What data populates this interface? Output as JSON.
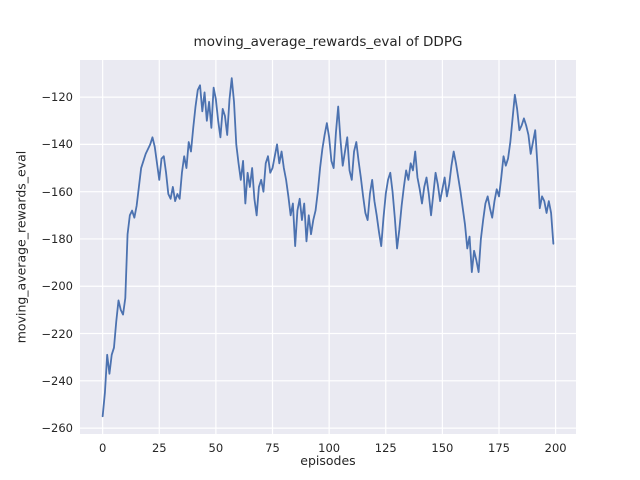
{
  "chart_data": {
    "type": "line",
    "title": "moving_average_rewards_eval of DDPG",
    "xlabel": "episodes",
    "ylabel": "moving_average_rewards_eval",
    "grid": true,
    "legend": false,
    "line_color": "#4c72b0",
    "plot_background": "#eaeaf2",
    "grid_color": "#ffffff",
    "text_color": "#262626",
    "xlim": [
      -10,
      209
    ],
    "ylim": [
      -262.5,
      -104.3
    ],
    "xticks": [
      0,
      25,
      50,
      75,
      100,
      125,
      150,
      175,
      200
    ],
    "yticks": [
      -260,
      -240,
      -220,
      -200,
      -180,
      -160,
      -140,
      -120
    ],
    "x": [
      0,
      1,
      2,
      3,
      4,
      5,
      6,
      7,
      8,
      9,
      10,
      11,
      12,
      13,
      14,
      15,
      16,
      17,
      18,
      19,
      20,
      21,
      22,
      23,
      24,
      25,
      26,
      27,
      28,
      29,
      30,
      31,
      32,
      33,
      34,
      35,
      36,
      37,
      38,
      39,
      40,
      41,
      42,
      43,
      44,
      45,
      46,
      47,
      48,
      49,
      50,
      51,
      52,
      53,
      54,
      55,
      56,
      57,
      58,
      59,
      60,
      61,
      62,
      63,
      64,
      65,
      66,
      67,
      68,
      69,
      70,
      71,
      72,
      73,
      74,
      75,
      76,
      77,
      78,
      79,
      80,
      81,
      82,
      83,
      84,
      85,
      86,
      87,
      88,
      89,
      90,
      91,
      92,
      93,
      94,
      95,
      96,
      97,
      98,
      99,
      100,
      101,
      102,
      103,
      104,
      105,
      106,
      107,
      108,
      109,
      110,
      111,
      112,
      113,
      114,
      115,
      116,
      117,
      118,
      119,
      120,
      121,
      122,
      123,
      124,
      125,
      126,
      127,
      128,
      129,
      130,
      131,
      132,
      133,
      134,
      135,
      136,
      137,
      138,
      139,
      140,
      141,
      142,
      143,
      144,
      145,
      146,
      147,
      148,
      149,
      150,
      151,
      152,
      153,
      154,
      155,
      156,
      157,
      158,
      159,
      160,
      161,
      162,
      163,
      164,
      165,
      166,
      167,
      168,
      169,
      170,
      171,
      172,
      173,
      174,
      175,
      176,
      177,
      178,
      179,
      180,
      181,
      182,
      183,
      184,
      185,
      186,
      187,
      188,
      189,
      190,
      191,
      192,
      193,
      194,
      195,
      196,
      197,
      198,
      199
    ],
    "y": [
      -255,
      -245,
      -229,
      -237,
      -229,
      -226,
      -215,
      -206,
      -210,
      -212,
      -205,
      -178,
      -170,
      -168,
      -171,
      -166,
      -158,
      -150,
      -147,
      -144,
      -142,
      -140,
      -137,
      -141,
      -148,
      -155,
      -146,
      -145,
      -152,
      -161,
      -163,
      -158,
      -164,
      -161,
      -163,
      -152,
      -145,
      -150,
      -139,
      -143,
      -133,
      -124,
      -117,
      -115,
      -126,
      -118,
      -130,
      -122,
      -133,
      -116,
      -121,
      -130,
      -137,
      -125,
      -128,
      -136,
      -121,
      -112,
      -122,
      -140,
      -148,
      -155,
      -147,
      -165,
      -152,
      -158,
      -150,
      -163,
      -170,
      -158,
      -155,
      -160,
      -148,
      -145,
      -152,
      -150,
      -145,
      -140,
      -148,
      -143,
      -150,
      -155,
      -162,
      -170,
      -165,
      -183,
      -168,
      -163,
      -172,
      -165,
      -181,
      -170,
      -178,
      -172,
      -168,
      -160,
      -150,
      -142,
      -136,
      -131,
      -137,
      -147,
      -150,
      -135,
      -124,
      -138,
      -149,
      -143,
      -137,
      -151,
      -155,
      -143,
      -139,
      -147,
      -154,
      -162,
      -169,
      -172,
      -161,
      -155,
      -164,
      -170,
      -177,
      -183,
      -171,
      -161,
      -155,
      -152,
      -160,
      -171,
      -184,
      -176,
      -166,
      -158,
      -151,
      -155,
      -148,
      -151,
      -143,
      -154,
      -159,
      -165,
      -158,
      -154,
      -161,
      -170,
      -161,
      -152,
      -157,
      -164,
      -159,
      -154,
      -162,
      -157,
      -149,
      -143,
      -148,
      -154,
      -160,
      -167,
      -174,
      -184,
      -179,
      -194,
      -185,
      -189,
      -194,
      -180,
      -172,
      -165,
      -162,
      -167,
      -171,
      -164,
      -159,
      -162,
      -154,
      -145,
      -149,
      -146,
      -139,
      -129,
      -119,
      -125,
      -134,
      -132,
      -129,
      -132,
      -136,
      -144,
      -139,
      -134,
      -149,
      -167,
      -162,
      -164,
      -169,
      -164,
      -169,
      -182
    ]
  }
}
